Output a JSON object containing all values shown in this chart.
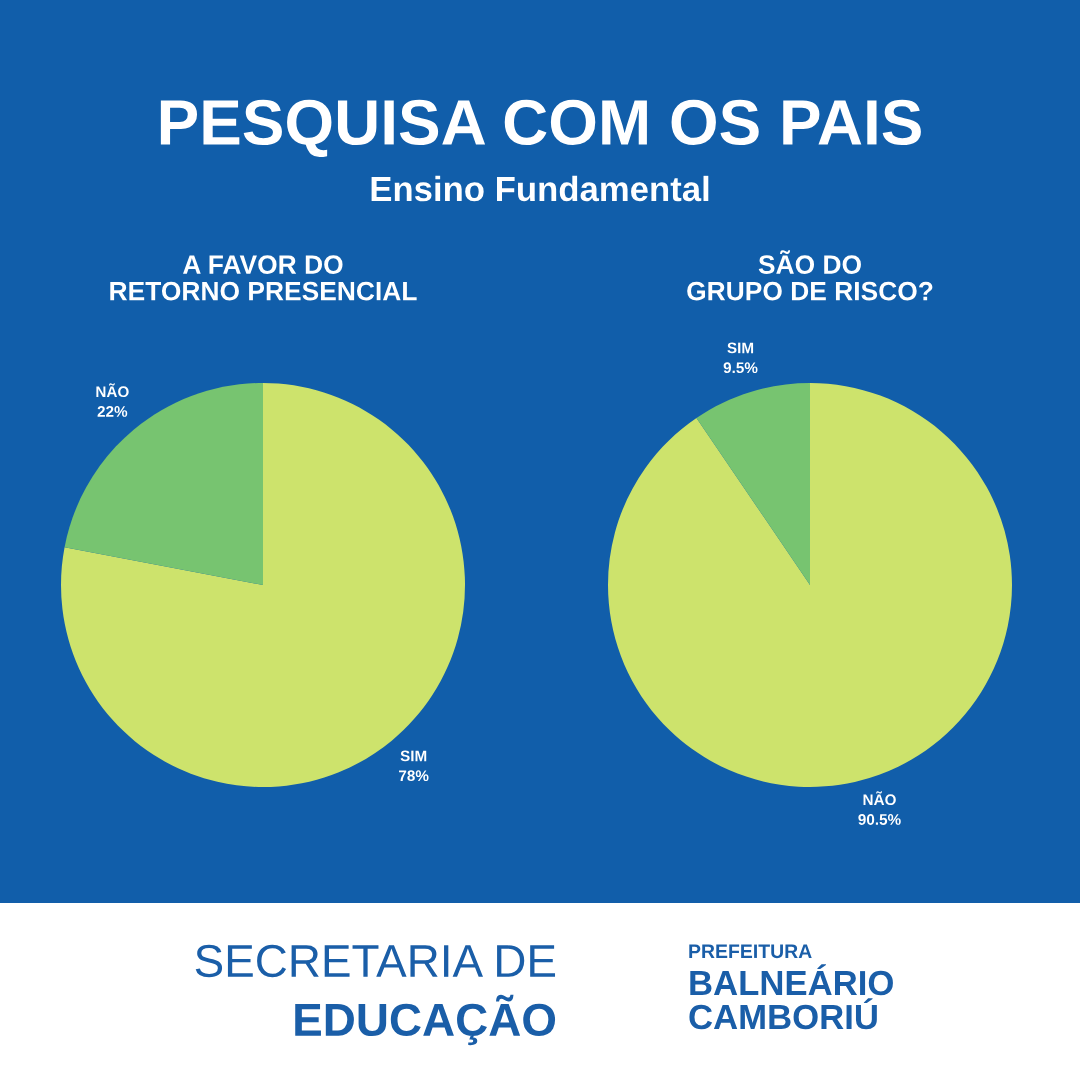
{
  "chart_data": [
    {
      "type": "other",
      "title": "PESQUISA COM OS PAIS",
      "subtitle": "Ensino Fundamental"
    },
    {
      "type": "pie",
      "title": "A FAVOR DO\nRETORNO PRESENCIAL",
      "categories": [
        "SIM",
        "NÃO"
      ],
      "values": [
        78,
        22
      ],
      "value_labels": [
        "78%",
        "22%"
      ],
      "colors": [
        "#cde36c",
        "#77c470"
      ]
    },
    {
      "type": "pie",
      "title": "SÃO DO\nGRUPO DE RISCO?",
      "categories": [
        "NÃO",
        "SIM"
      ],
      "values": [
        90.5,
        9.5
      ],
      "value_labels": [
        "90.5%",
        "9.5%"
      ],
      "colors": [
        "#cde36c",
        "#77c470"
      ]
    },
    {
      "type": "other",
      "annotations": [
        "SECRETARIA DE",
        "EDUCAÇÃO",
        "PREFEITURA",
        "BALNEÁRIO",
        "CAMBORIÚ"
      ]
    }
  ]
}
